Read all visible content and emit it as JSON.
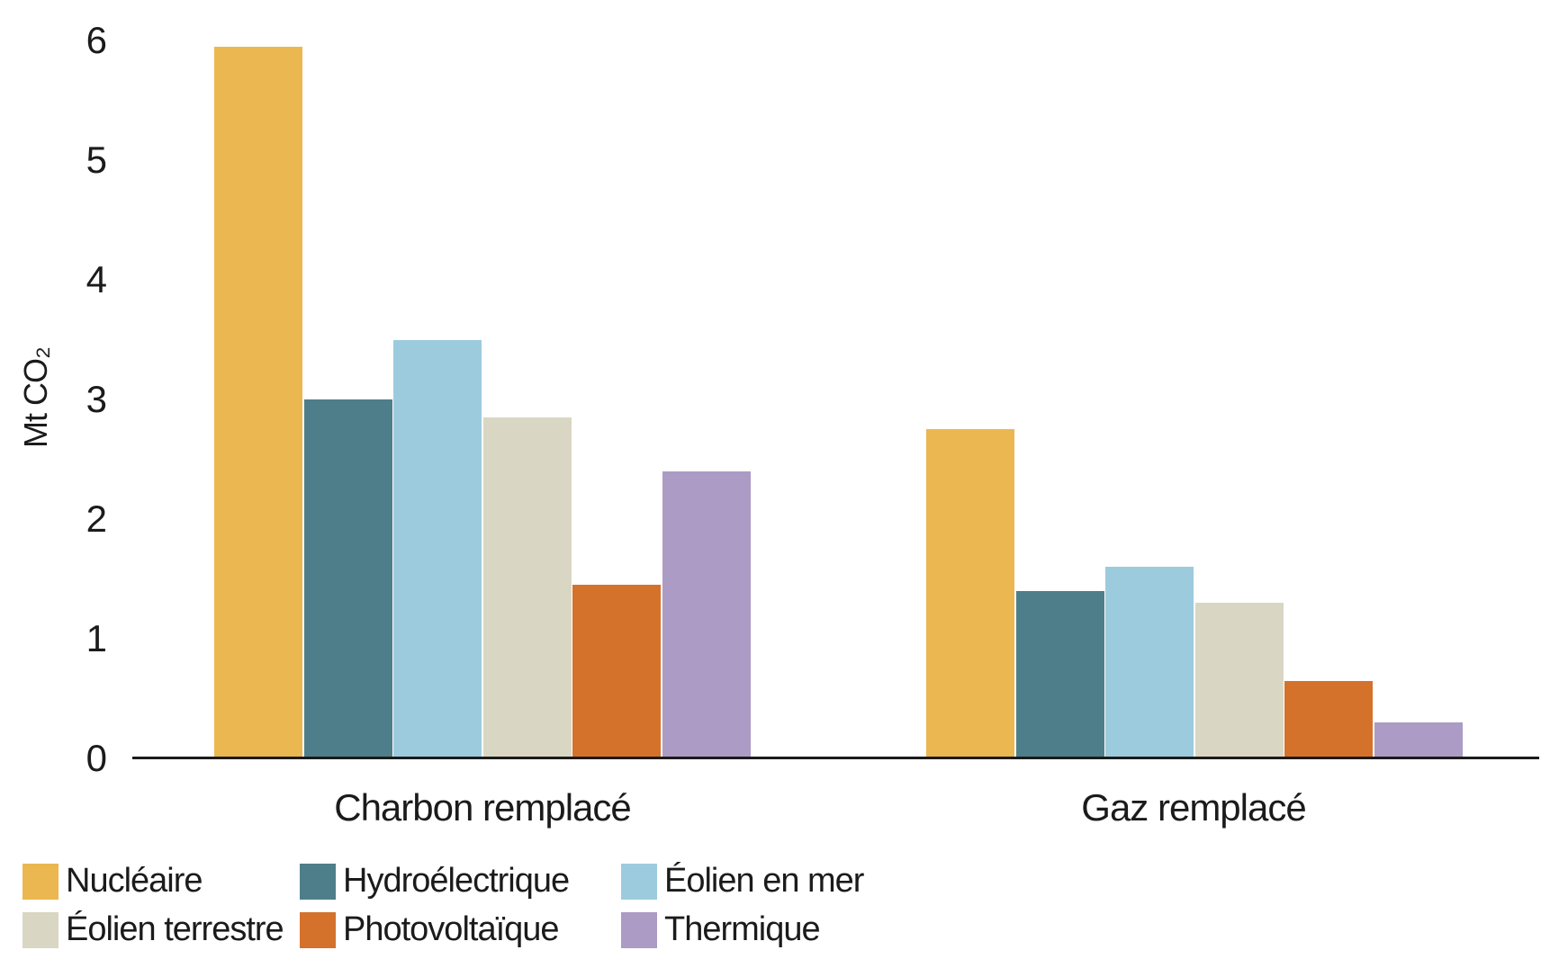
{
  "chart_data": {
    "type": "bar",
    "title": "",
    "xlabel": "",
    "ylabel": "Mt CO₂",
    "ylim": [
      0,
      6
    ],
    "y_ticks": [
      0,
      1,
      2,
      3,
      4,
      5,
      6
    ],
    "grid": false,
    "legend_position": "bottom",
    "axis_color": "#1b1b1b",
    "background_color": "#ffffff",
    "categories": [
      "Charbon remplacé",
      "Gaz remplacé"
    ],
    "series": [
      {
        "name": "Nucléaire",
        "color": "#EBB750",
        "values": [
          5.95,
          2.75
        ]
      },
      {
        "name": "Hydroélectrique",
        "color": "#4E7E8A",
        "values": [
          3.0,
          1.4
        ]
      },
      {
        "name": "Éolien en mer",
        "color": "#9CCBDE",
        "values": [
          3.5,
          1.6
        ]
      },
      {
        "name": "Éolien terrestre",
        "color": "#D9D7C3",
        "values": [
          2.85,
          1.3
        ]
      },
      {
        "name": "Photovoltaïque",
        "color": "#D4722C",
        "values": [
          1.45,
          0.65
        ]
      },
      {
        "name": "Thermique",
        "color": "#AC9BC5",
        "values": [
          2.4,
          0.3
        ]
      }
    ]
  }
}
